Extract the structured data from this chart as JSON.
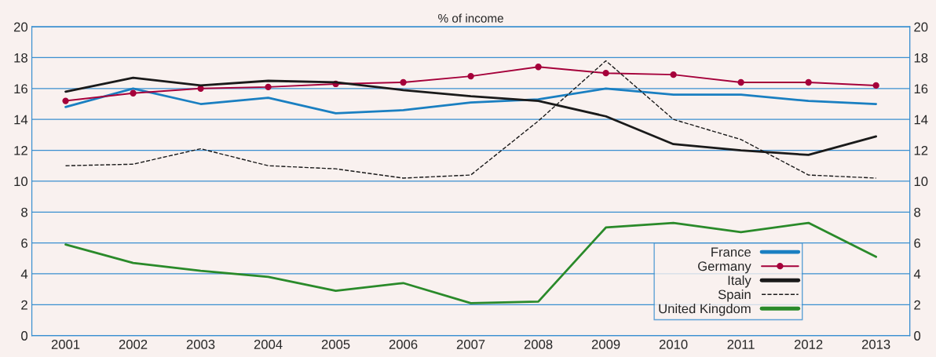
{
  "chart_data": {
    "type": "line",
    "ylabel": "% of income",
    "categories": [
      "2001",
      "2002",
      "2003",
      "2004",
      "2005",
      "2006",
      "2007",
      "2008",
      "2009",
      "2010",
      "2011",
      "2012",
      "2013"
    ],
    "series": [
      {
        "name": "France",
        "color": "#1a7fc1",
        "line_style": "solid",
        "values": [
          14.8,
          16.0,
          15.0,
          15.4,
          14.4,
          14.6,
          15.1,
          15.3,
          16.0,
          15.6,
          15.6,
          15.2,
          15.0
        ]
      },
      {
        "name": "Germany",
        "color": "#a5003a",
        "marker": "circle",
        "line_style": "solid",
        "values": [
          15.2,
          15.7,
          16.0,
          16.1,
          16.3,
          16.4,
          16.8,
          17.4,
          17.0,
          16.9,
          16.4,
          16.4,
          16.2
        ]
      },
      {
        "name": "Italy",
        "color": "#1a1a1a",
        "line_style": "solid",
        "values": [
          15.8,
          16.7,
          16.2,
          16.5,
          16.4,
          15.9,
          15.5,
          15.2,
          14.2,
          12.4,
          12.0,
          11.7,
          12.9
        ]
      },
      {
        "name": "Spain",
        "color": "#1a1a1a",
        "line_style": "dashed",
        "values": [
          11.0,
          11.1,
          12.1,
          11.0,
          10.8,
          10.2,
          10.4,
          13.9,
          17.8,
          14.0,
          12.7,
          10.4,
          10.2
        ]
      },
      {
        "name": "United Kingdom",
        "color": "#2a8a2a",
        "line_style": "solid",
        "values": [
          5.9,
          4.7,
          4.2,
          3.8,
          2.9,
          3.4,
          2.1,
          2.2,
          7.0,
          7.3,
          6.7,
          7.3,
          5.1
        ]
      }
    ],
    "ylim": [
      0,
      20
    ],
    "yticks": [
      0,
      2,
      4,
      6,
      8,
      10,
      12,
      14,
      16,
      18,
      20
    ],
    "y2lim": [
      0,
      20
    ],
    "y2ticks": [
      0,
      2,
      4,
      6,
      8,
      10,
      12,
      14,
      16,
      18,
      20
    ],
    "grid": true,
    "legend": "bottom right"
  }
}
